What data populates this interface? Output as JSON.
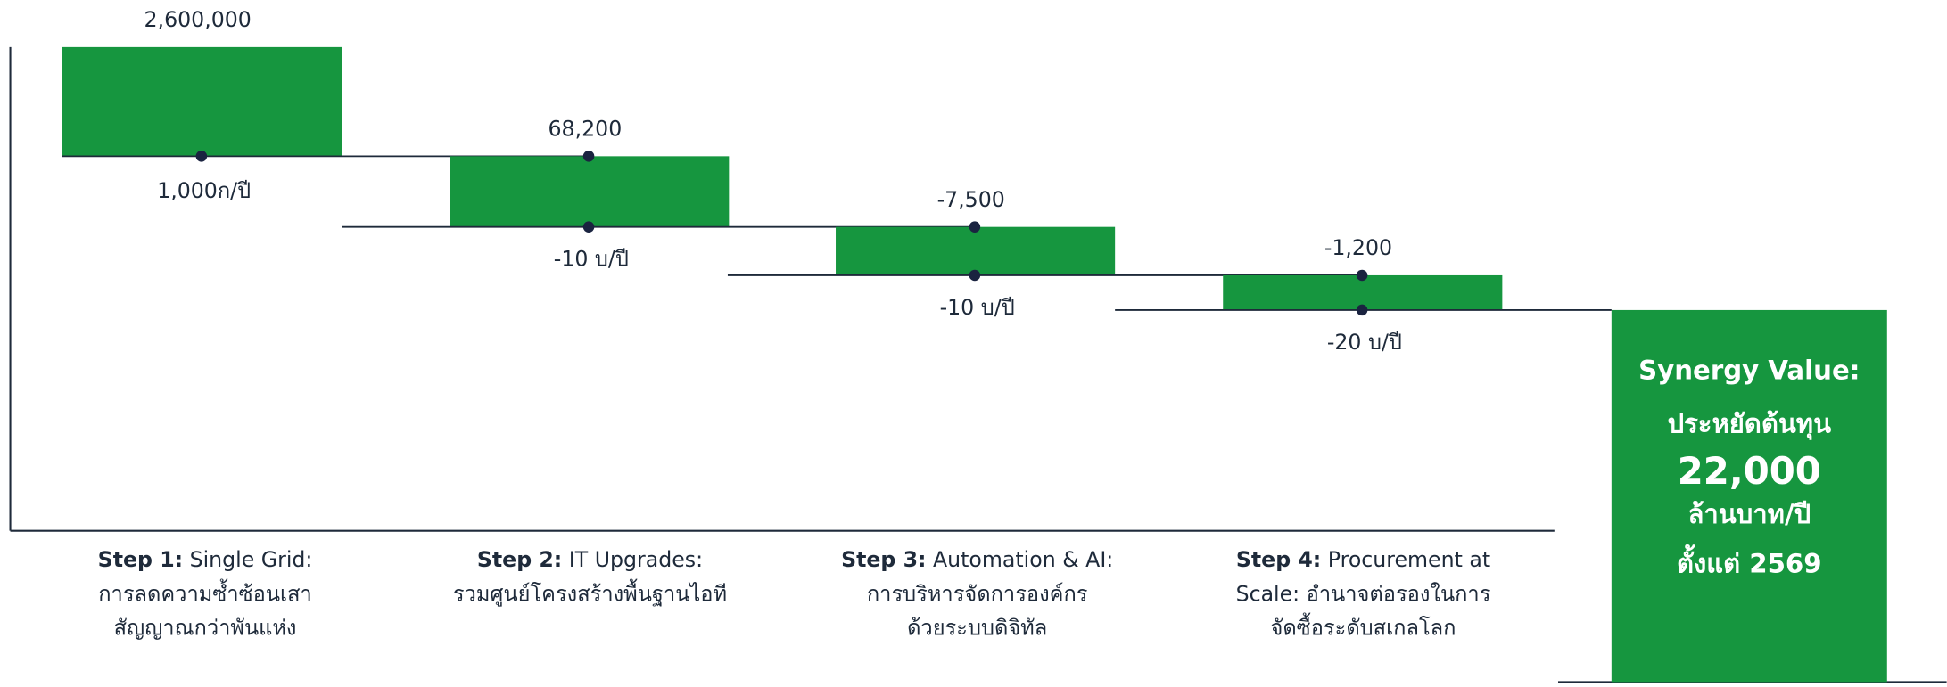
{
  "steps": [
    {
      "top_value": "2,600,000",
      "bottom_value": "1,000ก/ปี",
      "label": {
        "bold": "Step 1:",
        "lines": [
          " Single Grid:",
          "การลดความซ้ำซ้อนเสา",
          "สัญญาณกว่าพันแห่ง"
        ]
      }
    },
    {
      "top_value": "68,200",
      "bottom_value": "-10 บ/ปี",
      "label": {
        "bold": "Step 2:",
        "lines": [
          " IT Upgrades:",
          "รวมศูนย์โครงสร้างพื้นฐานไอที"
        ]
      }
    },
    {
      "top_value": "-7,500",
      "bottom_value": "-10 บ/ปี",
      "label": {
        "bold": "Step 3:",
        "lines": [
          " Automation & AI:",
          "การบริหารจัดการองค์กร",
          "ด้วยระบบดิจิทัล"
        ]
      }
    },
    {
      "top_value": "-1,200",
      "bottom_value": "-20 บ/ปี",
      "label": {
        "bold": "Step 4:",
        "lines": [
          " Procurement at",
          "Scale: อำนาจต่อรองในการ",
          "จัดซื้อระดับสเกลโลก"
        ]
      }
    }
  ],
  "total": {
    "lines": [
      "Synergy Value:",
      "ประหยัดต้นทุน",
      "22,000",
      "ล้านบาท/ปี",
      "ตั้งแต่ 2569"
    ]
  }
}
